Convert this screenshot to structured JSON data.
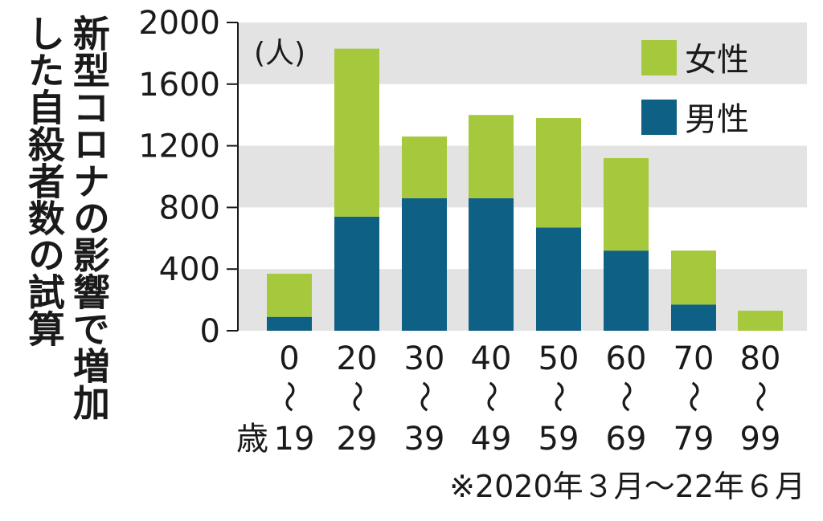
{
  "title": {
    "line1": "新型コロナの影響で増加",
    "line2": "した自殺者数の試算"
  },
  "note": "※2020年３月〜22年６月",
  "chart_data": {
    "type": "bar",
    "stacked": true,
    "unit_label": "(人)",
    "categories": [
      {
        "top": "0",
        "sep": "〜",
        "bottom": "19",
        "prefix": "歳"
      },
      {
        "top": "20",
        "sep": "〜",
        "bottom": "29"
      },
      {
        "top": "30",
        "sep": "〜",
        "bottom": "39"
      },
      {
        "top": "40",
        "sep": "〜",
        "bottom": "49"
      },
      {
        "top": "50",
        "sep": "〜",
        "bottom": "59"
      },
      {
        "top": "60",
        "sep": "〜",
        "bottom": "69"
      },
      {
        "top": "70",
        "sep": "〜",
        "bottom": "79"
      },
      {
        "top": "80",
        "sep": "〜",
        "bottom": "99"
      }
    ],
    "series": [
      {
        "name": "男性",
        "color": "#0f6085",
        "values": [
          90,
          740,
          860,
          860,
          670,
          520,
          170,
          0
        ]
      },
      {
        "name": "女性",
        "color": "#a5c83c",
        "values": [
          280,
          1090,
          400,
          540,
          710,
          600,
          350,
          130
        ]
      }
    ],
    "ylim": [
      0,
      2000
    ],
    "yticks": [
      0,
      400,
      800,
      1200,
      1600,
      2000
    ],
    "grid_bands": true,
    "band_color": "#e3e3e3",
    "legend_position": "top-right"
  }
}
